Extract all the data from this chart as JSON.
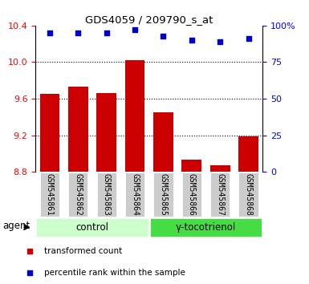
{
  "title": "GDS4059 / 209790_s_at",
  "samples": [
    "GSM545861",
    "GSM545862",
    "GSM545863",
    "GSM545864",
    "GSM545865",
    "GSM545866",
    "GSM545867",
    "GSM545868"
  ],
  "red_values": [
    9.65,
    9.73,
    9.66,
    10.02,
    9.45,
    8.93,
    8.87,
    9.19
  ],
  "blue_values": [
    95,
    95,
    95,
    97,
    93,
    90,
    89,
    91
  ],
  "ylim_left": [
    8.8,
    10.4
  ],
  "ylim_right": [
    0,
    100
  ],
  "yticks_left": [
    8.8,
    9.2,
    9.6,
    10.0,
    10.4
  ],
  "yticks_right": [
    0,
    25,
    50,
    75,
    100
  ],
  "ytick_labels_right": [
    "0",
    "25",
    "50",
    "75",
    "100%"
  ],
  "grid_values": [
    9.2,
    9.6,
    10.0
  ],
  "groups": [
    {
      "label": "control",
      "indices": [
        0,
        1,
        2,
        3
      ],
      "color": "#ccffcc"
    },
    {
      "label": "γ-tocotrienol",
      "indices": [
        4,
        5,
        6,
        7
      ],
      "color": "#44dd44"
    }
  ],
  "agent_label": "agent",
  "bar_color": "#cc0000",
  "dot_color": "#0000cc",
  "bar_base": 8.8,
  "legend_items": [
    "transformed count",
    "percentile rank within the sample"
  ],
  "sample_bg_color": "#cccccc",
  "tick_fontsize": 8,
  "label_fontsize": 9
}
